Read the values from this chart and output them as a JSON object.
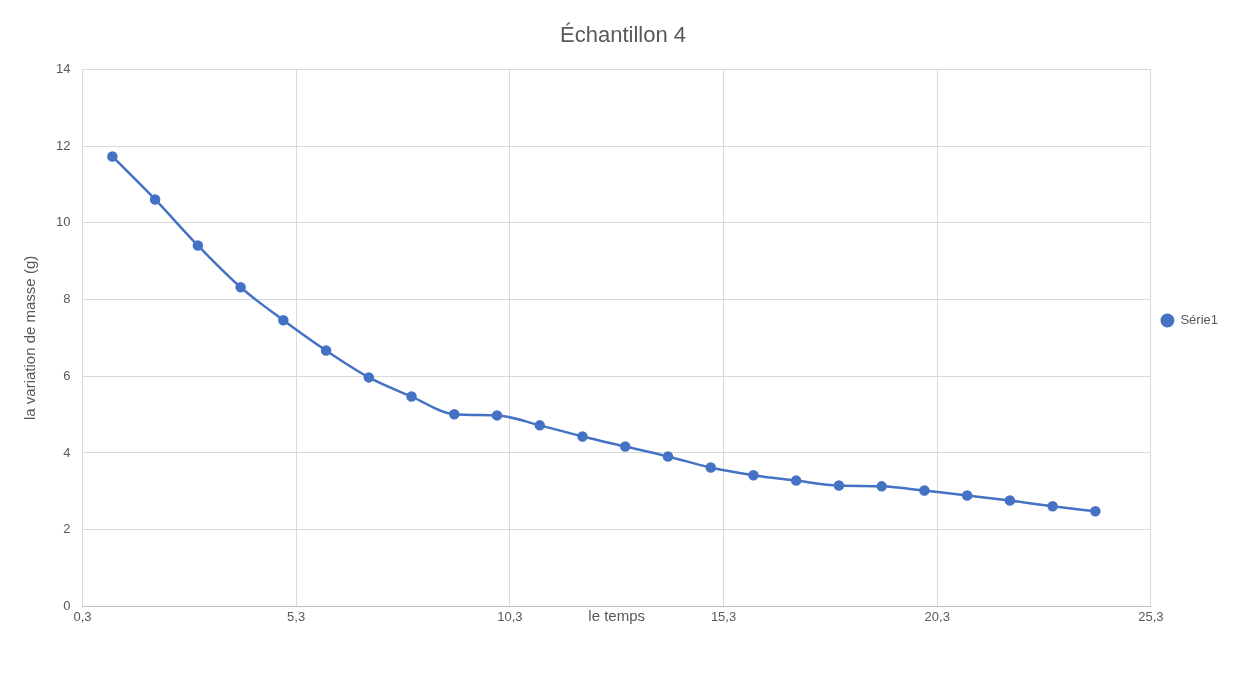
{
  "chart_data": {
    "type": "line",
    "title": "Échantillon 4",
    "xlabel": "le temps",
    "ylabel": "la variation de masse (g)",
    "x": [
      1,
      2,
      3,
      4,
      5,
      6,
      7,
      8,
      9,
      10,
      11,
      12,
      13,
      14,
      15,
      16,
      17,
      18,
      19,
      20,
      21,
      22,
      23,
      24
    ],
    "series": [
      {
        "name": "Série1",
        "color": "#4472c4",
        "values": [
          11.73,
          10.61,
          9.41,
          8.32,
          7.46,
          6.67,
          5.97,
          5.47,
          5.01,
          4.98,
          4.72,
          4.43,
          4.17,
          3.91,
          3.62,
          3.42,
          3.28,
          3.15,
          3.13,
          3.02,
          2.89,
          2.76,
          2.61,
          2.48
        ]
      }
    ],
    "xlim": [
      0.3,
      25.3
    ],
    "xticks": [
      {
        "value": 0.3,
        "label": "0,3"
      },
      {
        "value": 5.3,
        "label": "5,3"
      },
      {
        "value": 10.3,
        "label": "10,3"
      },
      {
        "value": 15.3,
        "label": "15,3"
      },
      {
        "value": 20.3,
        "label": "20,3"
      },
      {
        "value": 25.3,
        "label": "25,3"
      }
    ],
    "ylim": [
      0,
      14
    ],
    "yticks": [
      0,
      2,
      4,
      6,
      8,
      10,
      12,
      14
    ],
    "grid": true,
    "legend": "right",
    "marker": "circle",
    "line_style": "solid"
  }
}
